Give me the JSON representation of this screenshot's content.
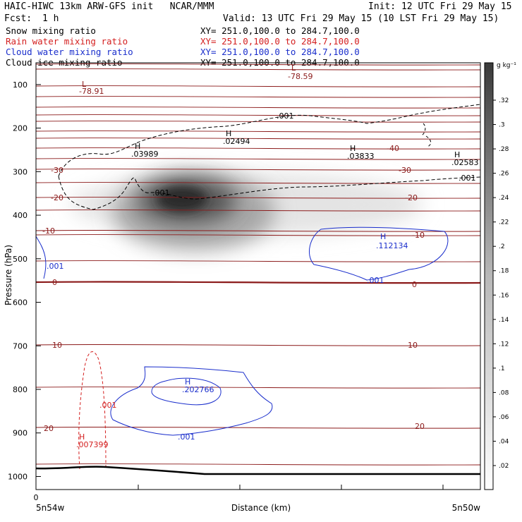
{
  "header": {
    "model_line": "HAIC-HIWC 13km ARW-GFS init   NCAR/MMM",
    "init": "Init: 12 UTC Fri 29 May 15",
    "fcst_label": "Fcst:",
    "fcst_value": "1 h",
    "valid": "Valid: 13 UTC Fri 29 May 15 (10 LST Fri 29 May 15)",
    "fields": [
      {
        "name": "Snow mixing ratio",
        "xy": "XY= 251.0,100.0 to 284.7,100.0",
        "color": "#000000"
      },
      {
        "name": "Rain water mixing ratio",
        "xy": "XY= 251.0,100.0 to 284.7,100.0",
        "color": "#d42020"
      },
      {
        "name": "Cloud water mixing ratio",
        "xy": "XY= 251.0,100.0 to 284.7,100.0",
        "color": "#1a2ecc"
      },
      {
        "name": "Cloud ice mixing ratio",
        "xy": "XY= 251.0,100.0 to 284.7,100.0",
        "color": "#000000"
      }
    ]
  },
  "chart_data": {
    "type": "contour",
    "ylabel": "Pressure (hPa)",
    "xlabel": "Distance (km)",
    "x_origin_label": "0",
    "x_left_label": "5n54w",
    "x_right_label": "5n50w",
    "y_ticks": [
      100,
      200,
      300,
      400,
      500,
      600,
      700,
      800,
      900,
      1000
    ],
    "y_range": [
      1030,
      50
    ],
    "colorbar": {
      "unit": "g kg⁻¹",
      "ticks": [
        ".02",
        ".04",
        ".06",
        ".08",
        ".1",
        ".12",
        ".14",
        ".16",
        ".18",
        ".2",
        ".22",
        ".24",
        ".26",
        ".28",
        ".3",
        ".32"
      ]
    },
    "temperature_contours": {
      "color": "#8b1a1a",
      "levels": [
        "-40",
        "-30",
        "-20",
        "-10",
        "0",
        "10",
        "20"
      ],
      "extremes": [
        {
          "type": "L",
          "value": "-78.91"
        },
        {
          "type": "L",
          "value": "-78.59"
        }
      ]
    },
    "snow_mixing_ratio": {
      "color": "#000000",
      "maximum": ".32"
    },
    "cloud_ice_mixing_ratio": {
      "color": "#000000",
      "contour_label": ".001",
      "maxima": [
        {
          "type": "H",
          "value": ".03989"
        },
        {
          "type": "H",
          "value": ".02494"
        },
        {
          "type": "H",
          "value": ".03833"
        },
        {
          "type": "H",
          "value": ".02583"
        }
      ]
    },
    "cloud_water_mixing_ratio": {
      "color": "#1a2ecc",
      "contour_label": ".001",
      "maxima": [
        {
          "type": "H",
          "value": ".112134"
        },
        {
          "type": "H",
          "value": ".202766"
        }
      ]
    },
    "rain_water_mixing_ratio": {
      "color": "#d42020",
      "contour_label": ".001",
      "maxima": [
        {
          "type": "H",
          "value": ".007399"
        }
      ]
    },
    "surface_line_color": "#000000"
  }
}
